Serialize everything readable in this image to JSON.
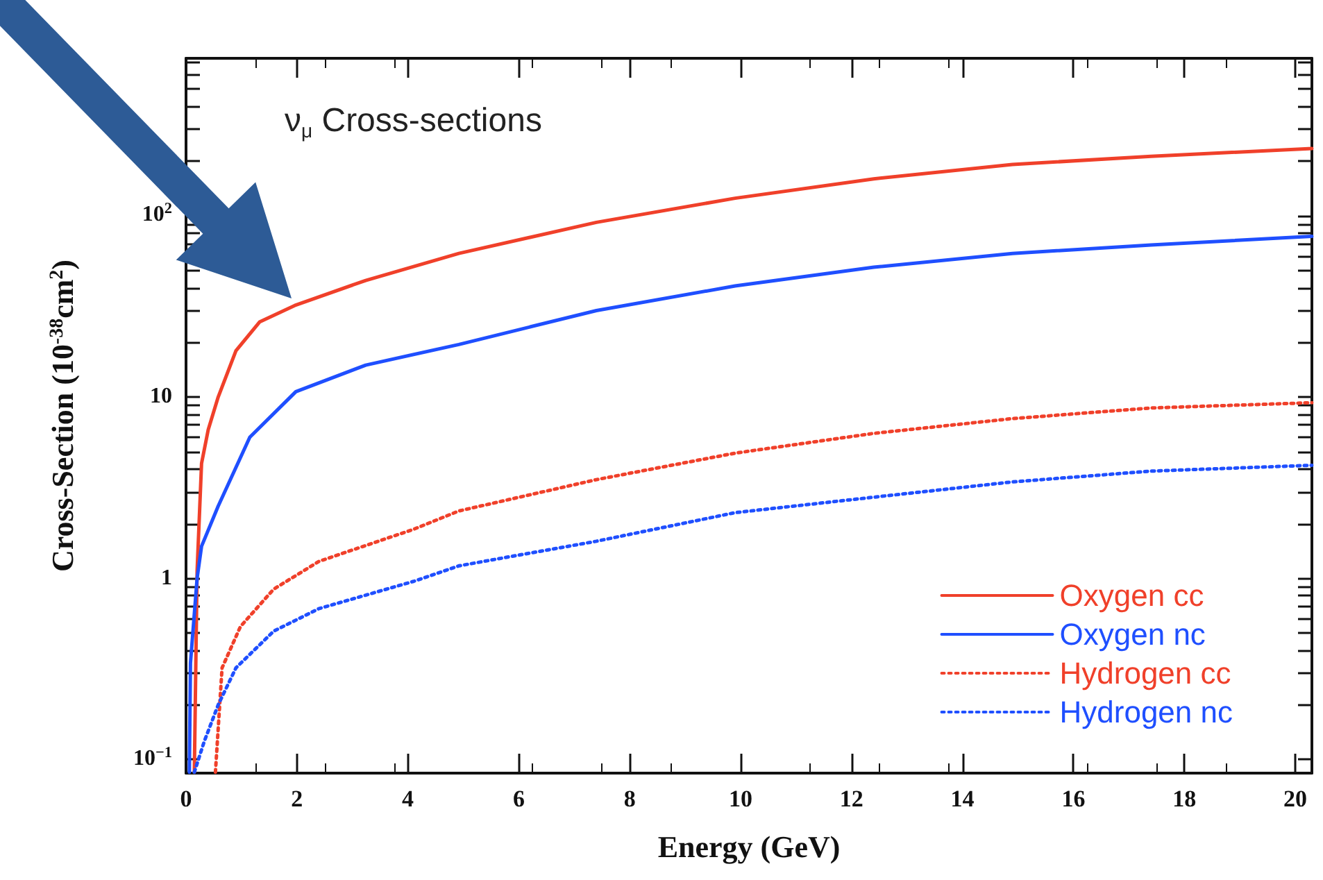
{
  "chart_data": {
    "type": "line",
    "title": "ν$_{μ}$ Cross-sections",
    "xlabel": "Energy (GeV)",
    "ylabel": "Cross-Section (10$^{-38}$cm$^{2}$)",
    "xlim": [
      0,
      20.3
    ],
    "xticks": [
      0,
      2,
      4,
      6,
      8,
      10,
      12,
      14,
      16,
      18,
      20
    ],
    "ylim": [
      0.084,
      740
    ],
    "log": "y",
    "yticks": [
      {
        "value": 0.1,
        "label": "10$^{−1}$"
      },
      {
        "value": 0.2,
        "label": null
      },
      {
        "value": 0.3,
        "label": null
      },
      {
        "value": 0.4,
        "label": null
      },
      {
        "value": 0.5,
        "label": null
      },
      {
        "value": 0.6,
        "label": null
      },
      {
        "value": 0.7,
        "label": null
      },
      {
        "value": 0.8,
        "label": null
      },
      {
        "value": 0.9,
        "label": null
      },
      1,
      {
        "value": 2,
        "label": null
      },
      {
        "value": 3,
        "label": null
      },
      {
        "value": 4,
        "label": null
      },
      {
        "value": 5,
        "label": null
      },
      {
        "value": 6,
        "label": null
      },
      {
        "value": 7,
        "label": null
      },
      {
        "value": 8,
        "label": null
      },
      {
        "value": 9,
        "label": null
      },
      10,
      {
        "value": 20,
        "label": null
      },
      {
        "value": 30,
        "label": null
      },
      {
        "value": 40,
        "label": null
      },
      {
        "value": 50,
        "label": null
      },
      {
        "value": 60,
        "label": null
      },
      {
        "value": 70,
        "label": null
      },
      {
        "value": 80,
        "label": null
      },
      {
        "value": 90,
        "label": null
      },
      {
        "value": 100,
        "label": "10$^{2}$"
      },
      {
        "value": 200,
        "label": null
      },
      {
        "value": 300,
        "label": null
      },
      {
        "value": 400,
        "label": null
      },
      {
        "value": 500,
        "label": null
      },
      {
        "value": 600,
        "label": null
      },
      {
        "value": 700,
        "label": null
      }
    ],
    "grid": false,
    "legend": "bottom right",
    "marker": "none",
    "series": [
      {
        "name": "Oxygen cc",
        "color": "#f0402a",
        "line_style": "solid",
        "x": [
          0.15,
          0.18,
          0.2,
          0.28,
          0.4,
          0.58,
          0.9,
          1.33,
          1.96,
          3.24,
          4.92,
          7.4,
          9.9,
          12.4,
          14.9,
          17.4,
          20.3
        ],
        "values": [
          0.085,
          0.4,
          1.1,
          4.3,
          6.6,
          10,
          18,
          26,
          32,
          44,
          62,
          92,
          125,
          160,
          192,
          213,
          235
        ]
      },
      {
        "name": "Oxygen nc",
        "color": "#1f4fff",
        "line_style": "solid",
        "x": [
          0.06,
          0.08,
          0.2,
          0.28,
          0.58,
          1.15,
          1.98,
          3.24,
          4.92,
          7.4,
          9.9,
          12.4,
          14.9,
          17.4,
          20.3
        ],
        "values": [
          0.085,
          0.34,
          1,
          1.5,
          2.5,
          6,
          10.7,
          15,
          19.5,
          30,
          41,
          52,
          62,
          69,
          77
        ]
      },
      {
        "name": "Hydrogen cc",
        "color": "#f0402a",
        "line_style": "dotted",
        "x": [
          0.53,
          0.65,
          0.98,
          1.58,
          2.4,
          4.1,
          4.92,
          7.4,
          9.9,
          12.4,
          14.9,
          17.4,
          20.3
        ],
        "values": [
          0.085,
          0.32,
          0.54,
          0.87,
          1.24,
          1.86,
          2.35,
          3.5,
          4.9,
          6.3,
          7.6,
          8.7,
          9.3
        ]
      },
      {
        "name": "Hydrogen nc",
        "color": "#1f4fff",
        "line_style": "dotted",
        "x": [
          0.15,
          0.33,
          0.58,
          0.9,
          1.58,
          2.4,
          4.1,
          4.92,
          7.4,
          9.9,
          12.4,
          14.9,
          17.4,
          20.3
        ],
        "values": [
          0.085,
          0.126,
          0.2,
          0.32,
          0.51,
          0.68,
          0.96,
          1.17,
          1.6,
          2.3,
          2.8,
          3.4,
          3.9,
          4.2
        ]
      }
    ]
  }
}
